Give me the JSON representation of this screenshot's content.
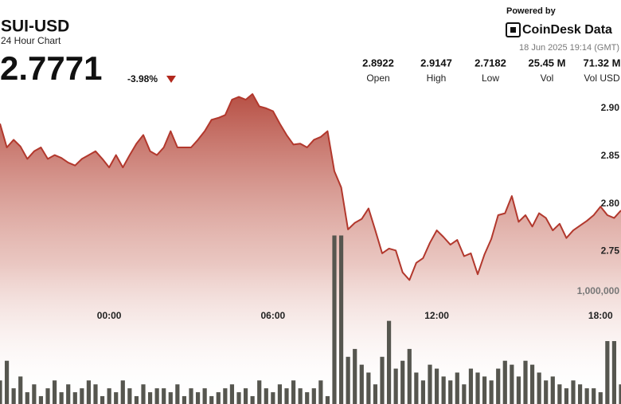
{
  "header": {
    "symbol": "SUI-USD",
    "subtitle": "24 Hour Chart",
    "price": "2.7771",
    "change": "-3.98%",
    "powered_by": "Powered by",
    "brand": "CoinDesk Data",
    "timestamp": "18 Jun 2025 19:14 (GMT)"
  },
  "stats": [
    {
      "value": "2.8922",
      "label": "Open"
    },
    {
      "value": "2.9147",
      "label": "High"
    },
    {
      "value": "2.7182",
      "label": "Low"
    },
    {
      "value": "25.45 M",
      "label": "Vol"
    },
    {
      "value": "71.32 M",
      "label": "Vol USD"
    }
  ],
  "chart_data": {
    "type": "line",
    "x": [
      -4,
      -3.75,
      -3.5,
      -3.25,
      -3,
      -2.75,
      -2.5,
      -2.25,
      -2,
      -1.75,
      -1.5,
      -1.25,
      -1,
      -0.75,
      -0.5,
      -0.25,
      0,
      0.25,
      0.5,
      0.75,
      1,
      1.25,
      1.5,
      1.75,
      2,
      2.25,
      2.5,
      2.75,
      3,
      3.25,
      3.5,
      3.75,
      4,
      4.25,
      4.5,
      4.75,
      5,
      5.25,
      5.5,
      5.75,
      6,
      6.25,
      6.5,
      6.75,
      7,
      7.25,
      7.5,
      7.75,
      8,
      8.25,
      8.5,
      8.75,
      9,
      9.25,
      9.5,
      9.75,
      10,
      10.25,
      10.5,
      10.75,
      11,
      11.25,
      11.5,
      11.75,
      12,
      12.25,
      12.5,
      12.75,
      13,
      13.25,
      13.5,
      13.75,
      14,
      14.25,
      14.5,
      14.75,
      15,
      15.25,
      15.5,
      15.75,
      16,
      16.25,
      16.5,
      16.75,
      17,
      17.25,
      17.5,
      17.75,
      18,
      18.25,
      18.5,
      18.75
    ],
    "xlim": [
      -4,
      18.75
    ],
    "xticks": [
      {
        "value": 0,
        "label": "00:00"
      },
      {
        "value": 6,
        "label": "06:00"
      },
      {
        "value": 12,
        "label": "12:00"
      },
      {
        "value": 18,
        "label": "18:00"
      }
    ],
    "ylim": [
      2.59,
      2.93
    ],
    "yticks": [
      2.75,
      {
        "value": 2.8,
        "label": "2.80"
      },
      2.85,
      {
        "value": 2.9,
        "label": "2.90"
      }
    ],
    "y2lim": [
      0,
      2000000
    ],
    "y2ticks": [
      {
        "value": 1000000,
        "label": "1,000,000"
      }
    ],
    "series": [
      {
        "color": "#b2382d",
        "values": [
          2.884,
          2.859,
          2.867,
          2.86,
          2.847,
          2.855,
          2.859,
          2.847,
          2.851,
          2.848,
          2.843,
          2.84,
          2.847,
          2.851,
          2.855,
          2.847,
          2.838,
          2.851,
          2.838,
          2.851,
          2.863,
          2.872,
          2.855,
          2.851,
          2.859,
          2.876,
          2.859,
          2.859,
          2.859,
          2.867,
          2.876,
          2.888,
          2.89,
          2.893,
          2.909,
          2.912,
          2.909,
          2.915,
          2.902,
          2.9,
          2.897,
          2.884,
          2.872,
          2.862,
          2.863,
          2.859,
          2.867,
          2.87,
          2.876,
          2.834,
          2.817,
          2.773,
          2.78,
          2.784,
          2.795,
          2.772,
          2.748,
          2.753,
          2.751,
          2.728,
          2.72,
          2.738,
          2.743,
          2.759,
          2.772,
          2.765,
          2.757,
          2.762,
          2.745,
          2.748,
          2.726,
          2.747,
          2.763,
          2.788,
          2.79,
          2.808,
          2.781,
          2.788,
          2.776,
          2.79,
          2.785,
          2.772,
          2.779,
          2.764,
          2.772,
          2.777,
          2.782,
          2.788,
          2.797,
          2.788,
          2.785,
          2.793
        ]
      },
      {
        "type": "bar",
        "axis": "y2",
        "color": "#56564f",
        "values": [
          210000,
          385000,
          140000,
          245000,
          105000,
          175000,
          70000,
          140000,
          210000,
          105000,
          175000,
          105000,
          140000,
          210000,
          175000,
          70000,
          140000,
          105000,
          210000,
          140000,
          70000,
          175000,
          105000,
          140000,
          140000,
          105000,
          175000,
          70000,
          140000,
          105000,
          140000,
          70000,
          105000,
          140000,
          175000,
          105000,
          140000,
          70000,
          210000,
          140000,
          105000,
          175000,
          140000,
          210000,
          140000,
          105000,
          140000,
          210000,
          70000,
          1500000,
          1500000,
          420000,
          490000,
          350000,
          280000,
          175000,
          420000,
          740000,
          315000,
          385000,
          490000,
          280000,
          210000,
          350000,
          315000,
          245000,
          210000,
          280000,
          175000,
          315000,
          280000,
          245000,
          210000,
          315000,
          385000,
          350000,
          245000,
          385000,
          350000,
          280000,
          210000,
          245000,
          175000,
          140000,
          210000,
          175000,
          140000,
          140000,
          105000,
          560000,
          560000,
          175000
        ]
      }
    ]
  }
}
